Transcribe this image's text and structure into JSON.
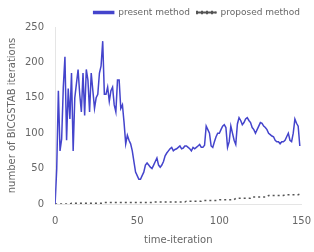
{
  "chart_data": {
    "type": "line",
    "xlabel": "time-iteration",
    "ylabel": "number of BICGSTAB iterations",
    "x": [
      0,
      1,
      2,
      3,
      4,
      5,
      6,
      7,
      8,
      9,
      10,
      11,
      12,
      13,
      14,
      15,
      16,
      17,
      18,
      19,
      20,
      21,
      22,
      23,
      24,
      25,
      26,
      27,
      28,
      29,
      30,
      31,
      32,
      33,
      34,
      35,
      36,
      37,
      38,
      39,
      40,
      41,
      42,
      43,
      44,
      45,
      46,
      47,
      48,
      49,
      50,
      51,
      52,
      53,
      54,
      55,
      56,
      57,
      58,
      59,
      60,
      61,
      62,
      63,
      64,
      65,
      66,
      67,
      68,
      69,
      70,
      71,
      72,
      73,
      74,
      75,
      76,
      77,
      78,
      79,
      80,
      81,
      82,
      83,
      84,
      85,
      86,
      87,
      88,
      89,
      90,
      91,
      92,
      93,
      94,
      95,
      96,
      97,
      98,
      99,
      100,
      101,
      102,
      103,
      104,
      105,
      106,
      107,
      108,
      109,
      110,
      111,
      112,
      113,
      114,
      115,
      116,
      117,
      118,
      119,
      120,
      121,
      122,
      123,
      124,
      125,
      126,
      127,
      128,
      129,
      130,
      131,
      132,
      133,
      134,
      135,
      136,
      137,
      138,
      139,
      140,
      141,
      142,
      143,
      144,
      145,
      146,
      147,
      148,
      149
    ],
    "series": [
      {
        "name": "present method",
        "color": "#4444cc",
        "line_style": "solid",
        "values": [
          0,
          50,
          160,
          75,
          92,
          165,
          208,
          90,
          163,
          120,
          185,
          75,
          150,
          170,
          190,
          155,
          130,
          185,
          125,
          190,
          175,
          130,
          185,
          160,
          135,
          150,
          155,
          185,
          195,
          230,
          155,
          155,
          165,
          145,
          160,
          165,
          140,
          130,
          175,
          175,
          135,
          140,
          115,
          85,
          97,
          90,
          85,
          75,
          60,
          45,
          40,
          35,
          35,
          40,
          45,
          55,
          58,
          55,
          52,
          50,
          55,
          60,
          65,
          55,
          52,
          55,
          60,
          68,
          72,
          75,
          78,
          80,
          75,
          77,
          78,
          80,
          82,
          78,
          79,
          82,
          82,
          80,
          78,
          75,
          80,
          78,
          80,
          82,
          84,
          80,
          80,
          83,
          110,
          105,
          100,
          82,
          80,
          88,
          95,
          100,
          100,
          105,
          110,
          112,
          108,
          80,
          88,
          110,
          100,
          90,
          84,
          113,
          122,
          118,
          112,
          115,
          120,
          122,
          118,
          115,
          108,
          105,
          100,
          105,
          110,
          115,
          114,
          110,
          108,
          105,
          100,
          98,
          96,
          95,
          90,
          88,
          88,
          85,
          88,
          88,
          90,
          95,
          100,
          90,
          88,
          100,
          120,
          114,
          110,
          82
        ]
      },
      {
        "name": "proposed method",
        "color": "#555555",
        "line_style": "dotted",
        "values": [
          0,
          0,
          0,
          0,
          0,
          0,
          0,
          0,
          0,
          0,
          1,
          1,
          1,
          1,
          1,
          1,
          1,
          1,
          1,
          1,
          1,
          1,
          1,
          1,
          1,
          1,
          1,
          1,
          1,
          1,
          2,
          2,
          2,
          2,
          2,
          2,
          2,
          2,
          2,
          2,
          2,
          2,
          2,
          2,
          2,
          2,
          2,
          2,
          2,
          2,
          2,
          2,
          2,
          2,
          2,
          2,
          2,
          2,
          2,
          2,
          3,
          3,
          3,
          3,
          3,
          3,
          3,
          3,
          3,
          3,
          3,
          3,
          3,
          3,
          3,
          3,
          3,
          3,
          3,
          3,
          4,
          4,
          4,
          4,
          4,
          4,
          4,
          4,
          4,
          4,
          5,
          5,
          5,
          5,
          5,
          5,
          5,
          5,
          5,
          5,
          6,
          6,
          6,
          6,
          6,
          6,
          6,
          6,
          6,
          6,
          8,
          8,
          8,
          8,
          8,
          8,
          8,
          8,
          8,
          8,
          10,
          10,
          10,
          10,
          10,
          10,
          10,
          10,
          10,
          10,
          12,
          12,
          12,
          12,
          12,
          12,
          12,
          12,
          12,
          12,
          13,
          13,
          13,
          13,
          13,
          13,
          13,
          13,
          13,
          14
        ]
      }
    ],
    "xlim": [
      0,
      150
    ],
    "ylim": [
      0,
      250
    ],
    "xticks": [
      0,
      50,
      100,
      150
    ],
    "yticks": [
      0,
      50,
      100,
      150,
      200,
      250
    ],
    "grid": false,
    "legend": "upper right"
  }
}
